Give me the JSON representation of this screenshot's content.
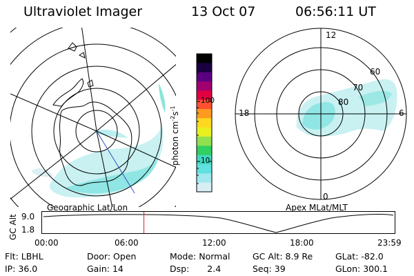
{
  "header": {
    "title": "Ultraviolet Imager",
    "date": "13 Oct 07",
    "time": "06:56:11 UT"
  },
  "left_map": {
    "caption": "Geographic Lat/Lon"
  },
  "right_map": {
    "caption": "Apex MLat/MLT",
    "mlt_labels": [
      "12",
      "18",
      "6",
      "0"
    ],
    "lat_labels": [
      "60",
      "70",
      "80"
    ]
  },
  "colorbar": {
    "label": "photon cm",
    "label_sup1": "-2",
    "label_s": "s",
    "label_sup2": "-1",
    "ticks": [
      "100",
      "10"
    ],
    "colors": [
      "#000000",
      "#1a0040",
      "#5b0080",
      "#a00070",
      "#e00040",
      "#ff5030",
      "#ff9a20",
      "#ffd820",
      "#e8f020",
      "#90e050",
      "#30d060",
      "#40d8c0",
      "#60e0e0",
      "#a0e8ee",
      "#d8eef2"
    ]
  },
  "altitude_plot": {
    "ylabel": "GC Alt",
    "y_ticks": [
      "9.0",
      "1.8"
    ],
    "x_ticks": [
      "00:00",
      "06:00",
      "12:00",
      "18:00",
      "23:59"
    ],
    "current_time_hours": 6.94
  },
  "status": {
    "flt_label": "Flt:",
    "flt_value": "LBHL",
    "door_label": "Door:",
    "door_value": "Open",
    "mode_label": "Mode:",
    "mode_value": "Normal",
    "gcalt_label": "GC Alt:",
    "gcalt_value": "8.9 Re",
    "glat_label": "GLat:",
    "glat_value": "-82.0",
    "ip_label": "IP:",
    "ip_value": "36.0",
    "gain_label": "Gain:",
    "gain_value": "14",
    "dsp_label": "Dsp:",
    "dsp_value": "2.4",
    "seq_label": "Seq:",
    "seq_value": "39",
    "glon_label": "GLon:",
    "glon_value": "300.1"
  }
}
